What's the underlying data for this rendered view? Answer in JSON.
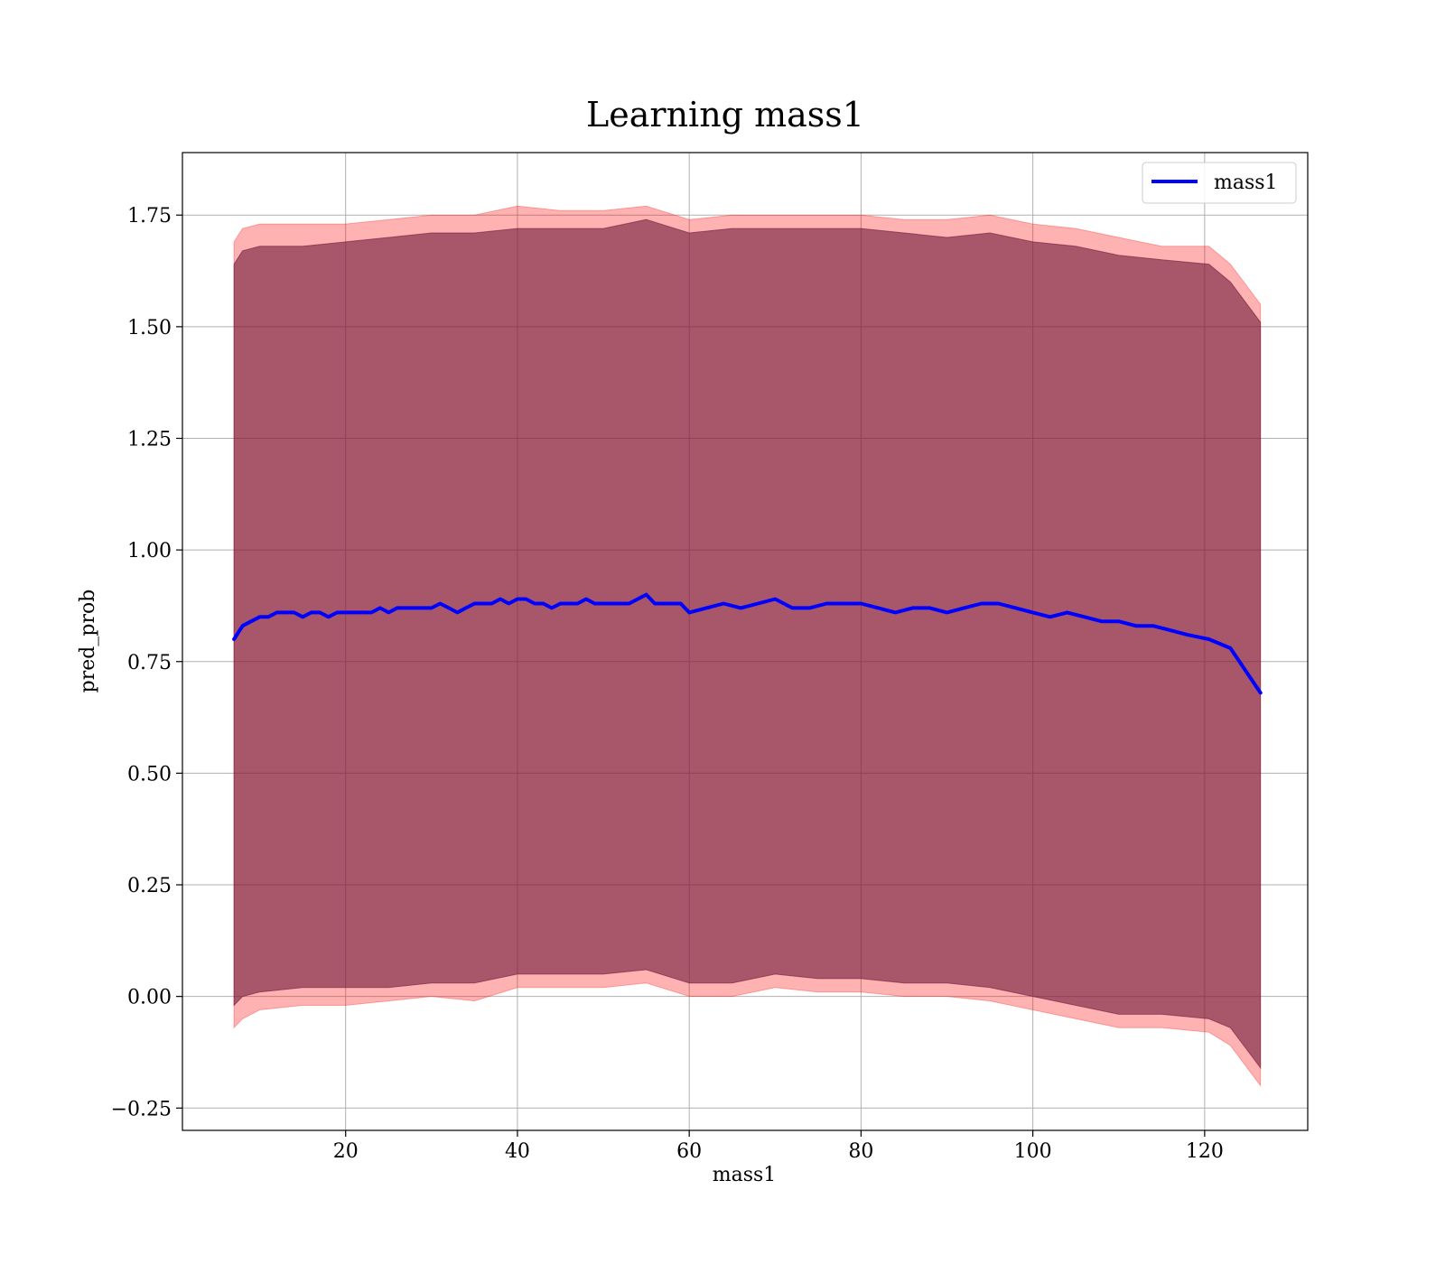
{
  "chart_data": {
    "type": "line",
    "title": "Learning mass1",
    "xlabel": "mass1",
    "ylabel": "pred_prob",
    "xlim": [
      1,
      132
    ],
    "ylim": [
      -0.3,
      1.89
    ],
    "xticks": [
      20,
      40,
      60,
      80,
      100,
      120
    ],
    "yticks": [
      -0.25,
      0.0,
      0.25,
      0.5,
      0.75,
      1.0,
      1.25,
      1.5,
      1.75
    ],
    "grid": true,
    "legend_position": "top-right",
    "series": [
      {
        "name": "mass1",
        "color": "#0000ff",
        "x": [
          7,
          8,
          9,
          10,
          11,
          12,
          13,
          14,
          15,
          16,
          17,
          18,
          19,
          20,
          21,
          22,
          23,
          24,
          25,
          26,
          27,
          28,
          29,
          30,
          31,
          32,
          33,
          34,
          35,
          36,
          37,
          38,
          39,
          40,
          41,
          42,
          43,
          44,
          45,
          46,
          47,
          48,
          49,
          50,
          51,
          52,
          53,
          54,
          55,
          56,
          57,
          58,
          59,
          60,
          62,
          64,
          66,
          68,
          70,
          72,
          74,
          76,
          78,
          80,
          82,
          84,
          86,
          88,
          90,
          92,
          94,
          96,
          98,
          100,
          102,
          104,
          106,
          108,
          110,
          112,
          114,
          116,
          118,
          120.5,
          123,
          126.5
        ],
        "y": [
          0.8,
          0.83,
          0.84,
          0.85,
          0.85,
          0.86,
          0.86,
          0.86,
          0.85,
          0.86,
          0.86,
          0.85,
          0.86,
          0.86,
          0.86,
          0.86,
          0.86,
          0.87,
          0.86,
          0.87,
          0.87,
          0.87,
          0.87,
          0.87,
          0.88,
          0.87,
          0.86,
          0.87,
          0.88,
          0.88,
          0.88,
          0.89,
          0.88,
          0.89,
          0.89,
          0.88,
          0.88,
          0.87,
          0.88,
          0.88,
          0.88,
          0.89,
          0.88,
          0.88,
          0.88,
          0.88,
          0.88,
          0.89,
          0.9,
          0.88,
          0.88,
          0.88,
          0.88,
          0.86,
          0.87,
          0.88,
          0.87,
          0.88,
          0.89,
          0.87,
          0.87,
          0.88,
          0.88,
          0.88,
          0.87,
          0.86,
          0.87,
          0.87,
          0.86,
          0.87,
          0.88,
          0.88,
          0.87,
          0.86,
          0.85,
          0.86,
          0.85,
          0.84,
          0.84,
          0.83,
          0.83,
          0.82,
          0.81,
          0.8,
          0.78,
          0.68
        ]
      }
    ],
    "bands": [
      {
        "name": "outer band",
        "color": "#ff0000",
        "opacity": 0.3,
        "x": [
          7,
          8,
          10,
          15,
          20,
          25,
          30,
          35,
          40,
          45,
          50,
          55,
          60,
          65,
          70,
          75,
          80,
          85,
          90,
          95,
          100,
          105,
          110,
          115,
          120.5,
          123,
          126.5
        ],
        "upper": [
          1.69,
          1.72,
          1.73,
          1.73,
          1.73,
          1.74,
          1.75,
          1.75,
          1.77,
          1.76,
          1.76,
          1.77,
          1.74,
          1.75,
          1.75,
          1.75,
          1.75,
          1.74,
          1.74,
          1.75,
          1.73,
          1.72,
          1.7,
          1.68,
          1.68,
          1.64,
          1.55
        ],
        "lower": [
          -0.07,
          -0.05,
          -0.03,
          -0.02,
          -0.02,
          -0.01,
          0.0,
          -0.01,
          0.02,
          0.02,
          0.02,
          0.03,
          0.0,
          0.0,
          0.02,
          0.01,
          0.01,
          0.0,
          0.0,
          -0.01,
          -0.03,
          -0.05,
          -0.07,
          -0.07,
          -0.08,
          -0.11,
          -0.2
        ]
      },
      {
        "name": "inner band",
        "color": "#6e1a3c",
        "opacity": 0.6,
        "x": [
          7,
          8,
          10,
          15,
          20,
          25,
          30,
          35,
          40,
          45,
          50,
          55,
          60,
          65,
          70,
          75,
          80,
          85,
          90,
          95,
          100,
          105,
          110,
          115,
          120.5,
          123,
          126.5
        ],
        "upper": [
          1.64,
          1.67,
          1.68,
          1.68,
          1.69,
          1.7,
          1.71,
          1.71,
          1.72,
          1.72,
          1.72,
          1.74,
          1.71,
          1.72,
          1.72,
          1.72,
          1.72,
          1.71,
          1.7,
          1.71,
          1.69,
          1.68,
          1.66,
          1.65,
          1.64,
          1.6,
          1.51
        ],
        "lower": [
          -0.02,
          0.0,
          0.01,
          0.02,
          0.02,
          0.02,
          0.03,
          0.03,
          0.05,
          0.05,
          0.05,
          0.06,
          0.03,
          0.03,
          0.05,
          0.04,
          0.04,
          0.03,
          0.03,
          0.02,
          0.0,
          -0.02,
          -0.04,
          -0.04,
          -0.05,
          -0.07,
          -0.16
        ]
      }
    ]
  }
}
